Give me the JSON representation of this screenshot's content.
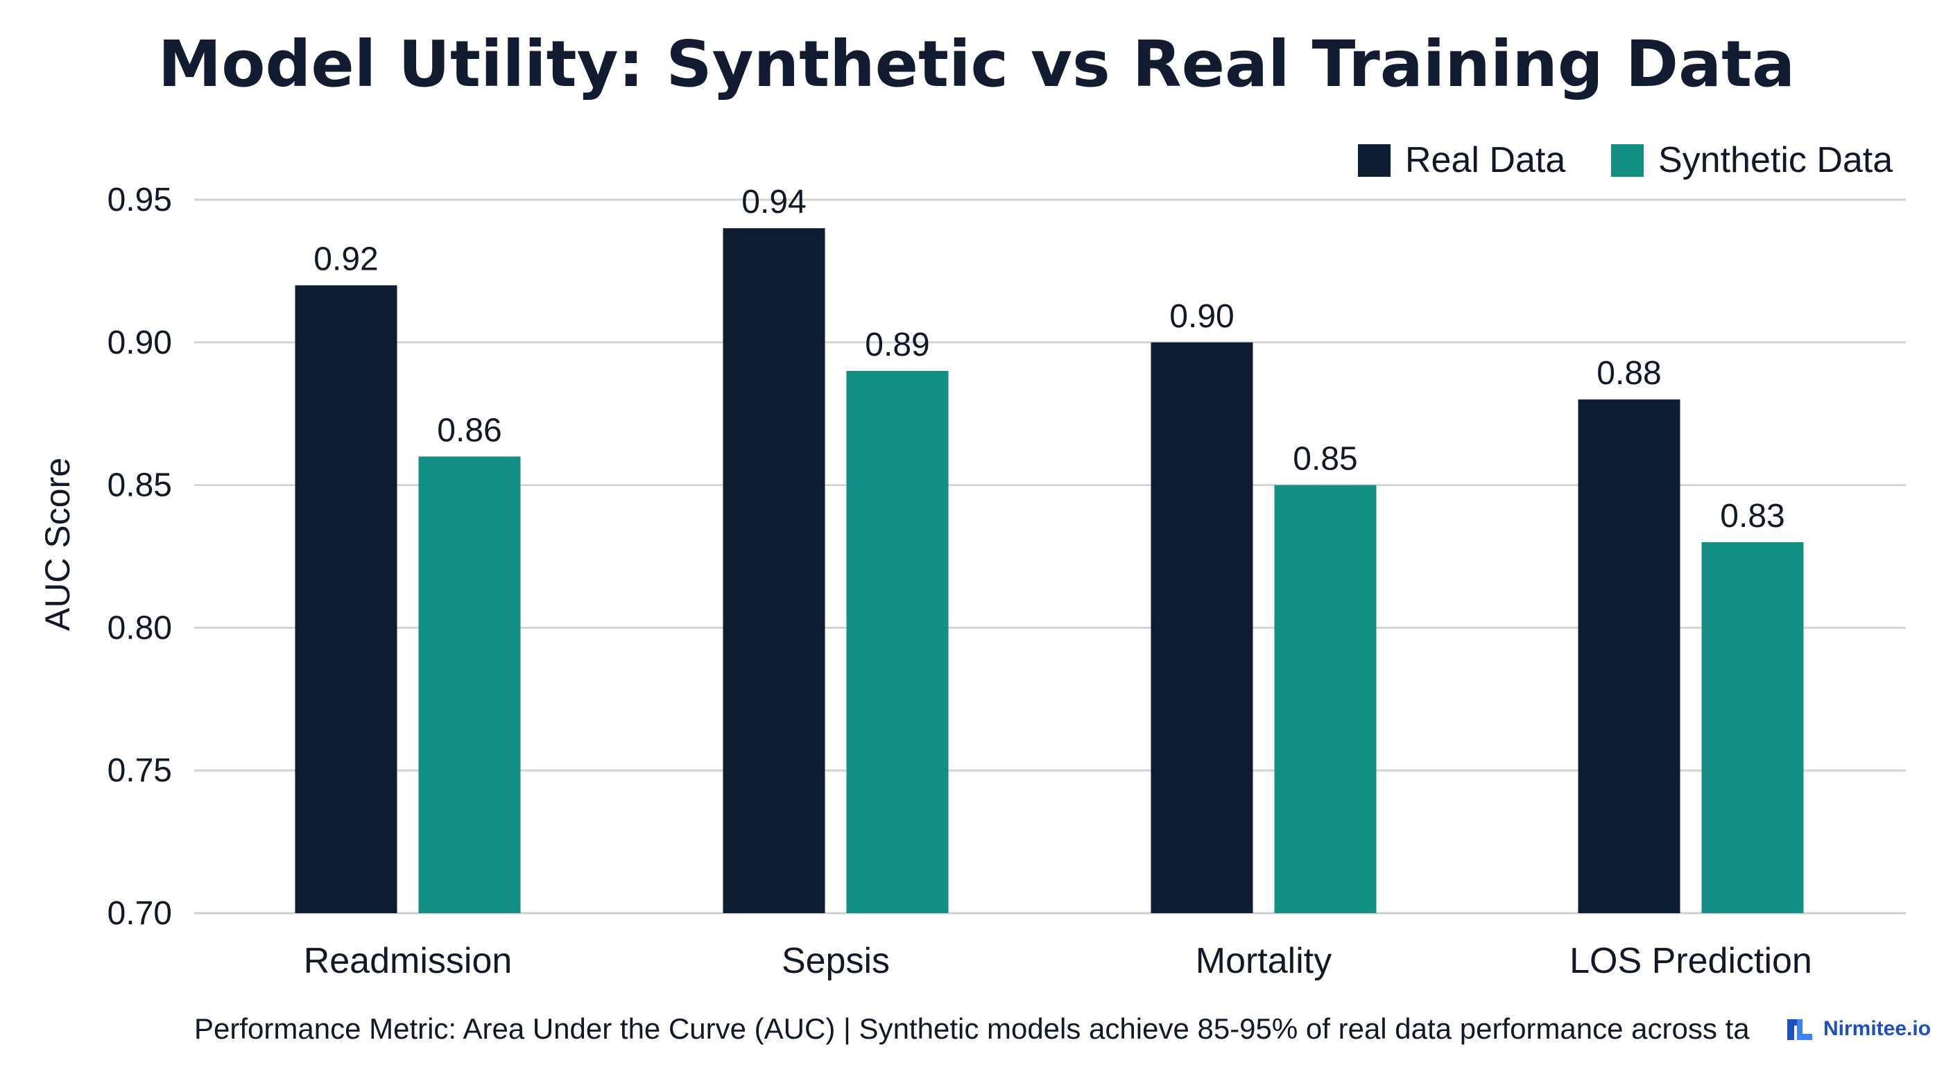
{
  "chart_data": {
    "type": "bar",
    "title": "Model Utility: Synthetic vs Real Training Data",
    "ylabel": "AUC Score",
    "xlabel": "",
    "categories": [
      "Readmission",
      "Sepsis",
      "Mortality",
      "LOS Prediction"
    ],
    "series": [
      {
        "name": "Real Data",
        "values": [
          0.92,
          0.94,
          0.9,
          0.88
        ],
        "color": "#0f1d33"
      },
      {
        "name": "Synthetic Data",
        "values": [
          0.86,
          0.89,
          0.85,
          0.83
        ],
        "color": "#128f82"
      }
    ],
    "ylim": [
      0.7,
      0.95
    ],
    "yticks": [
      "0.70",
      "0.75",
      "0.80",
      "0.85",
      "0.90",
      "0.95"
    ],
    "data_labels": [
      [
        "0.92",
        "0.94",
        "0.90",
        "0.88"
      ],
      [
        "0.86",
        "0.89",
        "0.85",
        "0.83"
      ]
    ],
    "grid": true,
    "legend_position": "top-right"
  },
  "footer": {
    "text": "Performance Metric: Area Under the Curve (AUC) | Synthetic models achieve 85-95% of real data performance across ta",
    "brand": "Nirmitee.io",
    "brand_icon": "nirmitee-logo-icon",
    "brand_color": "#1e4fbf"
  },
  "colors": {
    "title": "#111c30",
    "text": "#111827",
    "grid": "#d4d4d4",
    "axis": "#cfcfcf"
  }
}
